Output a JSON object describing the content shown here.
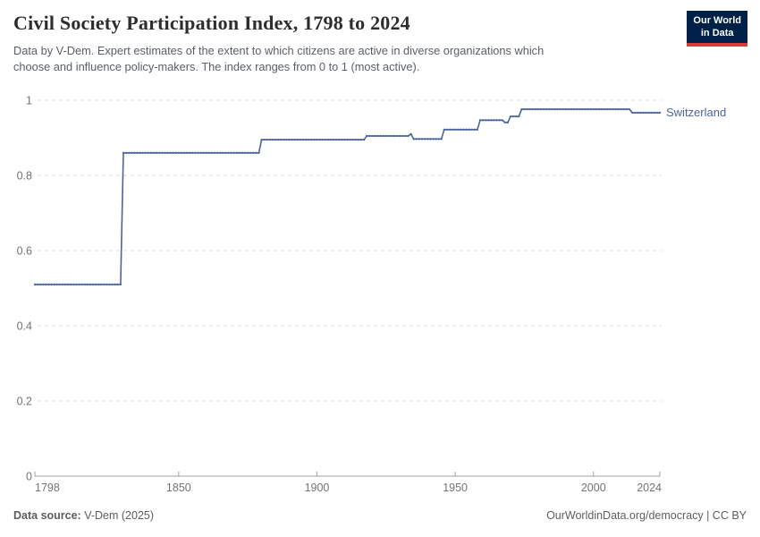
{
  "header": {
    "title": "Civil Society Participation Index, 1798 to 2024",
    "subtitle": "Data by V-Dem. Expert estimates of the extent to which citizens are active in diverse organizations which\nchoose and influence policy-makers. The index ranges from 0 to 1 (most active)."
  },
  "logo": {
    "line1": "Our World",
    "line2": "in Data",
    "bg_color": "#002147",
    "accent_color": "#dc3a34"
  },
  "chart_data": {
    "type": "line",
    "title": "Civil Society Participation Index, 1798 to 2024",
    "entity": "Switzerland",
    "xlim": [
      1798,
      2024
    ],
    "ylim": [
      0,
      1
    ],
    "x_ticks": [
      1798,
      1850,
      1900,
      1950,
      2000,
      2024
    ],
    "y_ticks": [
      0,
      0.2,
      0.4,
      0.6,
      0.8,
      1
    ],
    "grid": "horizontal-dashed",
    "legend_position": "end-of-line-label",
    "line_style": "step-with-yearly-point-markers",
    "axis_color": "#a1a1a1",
    "grid_color": "#dcdcdc",
    "series": [
      {
        "name": "Switzerland",
        "color": "#4a659e",
        "segments": [
          {
            "from": 1798,
            "to": 1829,
            "value": 0.51
          },
          {
            "from": 1830,
            "to": 1879,
            "value": 0.86
          },
          {
            "from": 1880,
            "to": 1917,
            "value": 0.895
          },
          {
            "from": 1918,
            "to": 1933,
            "value": 0.905
          },
          {
            "from": 1934,
            "to": 1934,
            "value": 0.91
          },
          {
            "from": 1935,
            "to": 1945,
            "value": 0.897
          },
          {
            "from": 1946,
            "to": 1958,
            "value": 0.922
          },
          {
            "from": 1959,
            "to": 1967,
            "value": 0.947
          },
          {
            "from": 1968,
            "to": 1969,
            "value": 0.941
          },
          {
            "from": 1970,
            "to": 1973,
            "value": 0.957
          },
          {
            "from": 1974,
            "to": 2013,
            "value": 0.976
          },
          {
            "from": 2014,
            "to": 2024,
            "value": 0.967
          }
        ]
      }
    ]
  },
  "footer": {
    "source_label": "Data source:",
    "source_value": " V-Dem (2025)",
    "right_text": "OurWorldinData.org/democracy | CC BY"
  }
}
